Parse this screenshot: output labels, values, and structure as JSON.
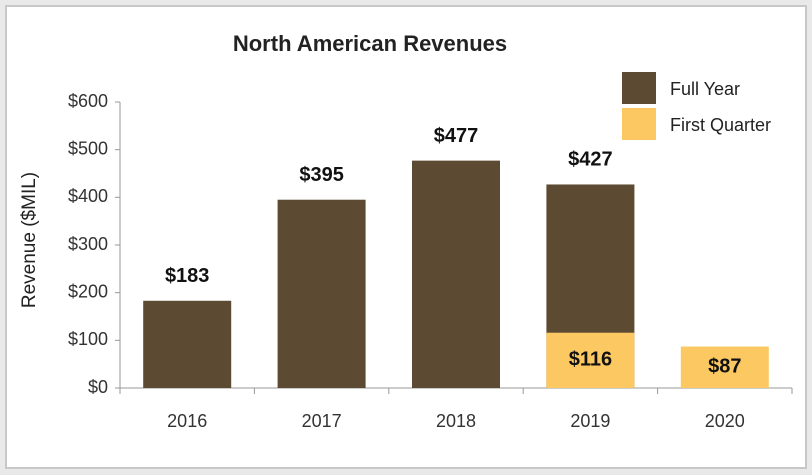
{
  "chart_data": {
    "type": "bar",
    "title": "North American Revenues",
    "ylabel": "Revenue ($MIL)",
    "categories": [
      "2016",
      "2017",
      "2018",
      "2019",
      "2020"
    ],
    "series": [
      {
        "name": "Full Year",
        "color": "#5c4a33",
        "values": [
          183,
          395,
          477,
          427,
          null
        ],
        "value_labels": [
          "$183",
          "$395",
          "$477",
          "$427",
          null
        ]
      },
      {
        "name": "First Quarter",
        "color": "#fcc862",
        "values": [
          null,
          null,
          null,
          116,
          87
        ],
        "value_labels": [
          null,
          null,
          null,
          "$116",
          "$87"
        ]
      }
    ],
    "ylim": [
      0,
      600
    ],
    "yticks": [
      {
        "value": 0,
        "label": "$0"
      },
      {
        "value": 100,
        "label": "$100"
      },
      {
        "value": 200,
        "label": "$200"
      },
      {
        "value": 300,
        "label": "$300"
      },
      {
        "value": 400,
        "label": "$400"
      },
      {
        "value": 500,
        "label": "$500"
      },
      {
        "value": 600,
        "label": "$600"
      }
    ],
    "grid": false,
    "legend": "top-right"
  }
}
